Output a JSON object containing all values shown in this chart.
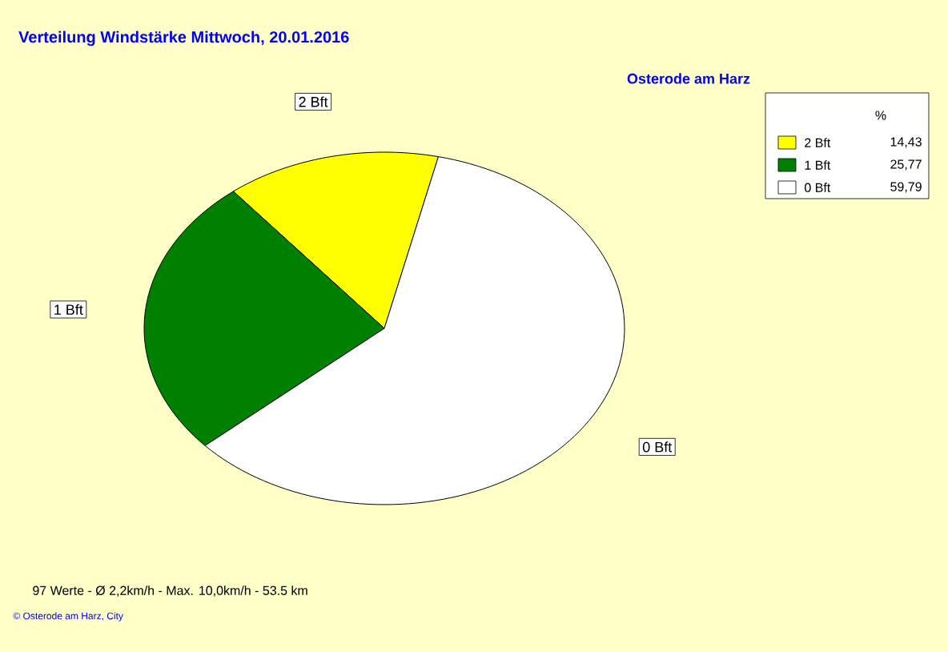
{
  "chart_data": {
    "type": "pie",
    "title": "Verteilung Windstärke  Mittwoch, 20.01.2016",
    "subtitle": "Osterode am Harz",
    "categories": [
      "2 Bft",
      "1 Bft",
      "0 Bft"
    ],
    "values": [
      14.43,
      25.77,
      59.79
    ],
    "colors": [
      "#ffff00",
      "#008000",
      "#ffffff"
    ],
    "value_labels": [
      "14,43",
      "25,77",
      "59,79"
    ],
    "legend_title": "%",
    "legend": "top right",
    "annotations": [
      "97 Werte   -   Ø 2,2km/h   -   Max. 10,0km/h   -    53.5 km",
      "© Osterode am Harz, City"
    ]
  }
}
